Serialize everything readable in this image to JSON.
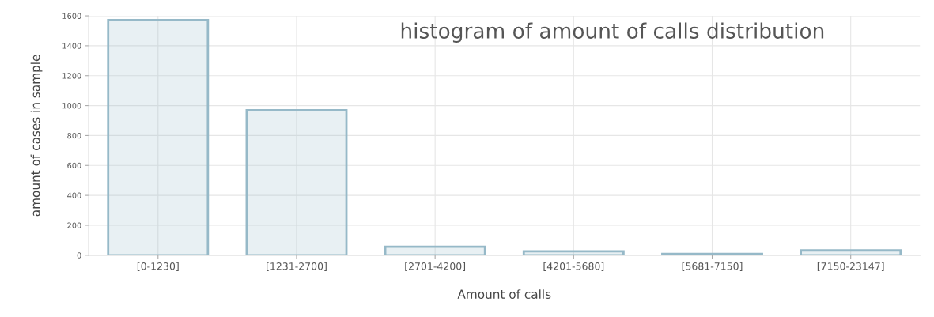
{
  "chart_data": {
    "type": "bar",
    "title": "histogram of amount of calls distribution",
    "xlabel": "Amount of calls",
    "ylabel": "amount of cases in sample",
    "categories": [
      "[0-1230]",
      "[1231-2700]",
      "[2701-4200]",
      "[4201-5680]",
      "[5681-7150]",
      "[7150-23147]"
    ],
    "values": [
      1572,
      969,
      57,
      26,
      9,
      32
    ],
    "color": "#96b9c8",
    "ylim": [
      0,
      1600
    ],
    "yticks": [
      0,
      200,
      400,
      600,
      800,
      1000,
      1200,
      1400,
      1600
    ],
    "grid": true
  }
}
